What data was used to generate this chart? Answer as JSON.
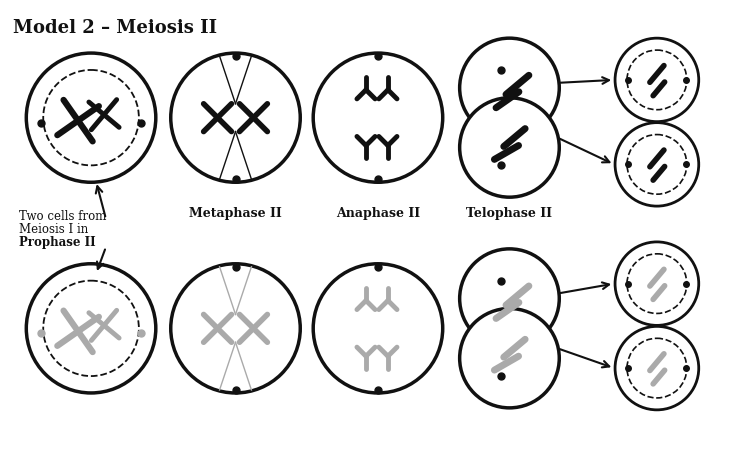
{
  "title": "Model 2 – Meiosis II",
  "bg": "#ffffff",
  "dark": "#111111",
  "gray": "#aaaaaa",
  "labels": {
    "prophase_line1": "Two cells from",
    "prophase_line2": "Meiosis I in",
    "prophase_line3": "Prophase II",
    "metaphase": "Metaphase II",
    "anaphase": "Anaphase II",
    "telophase": "Telophase II"
  }
}
